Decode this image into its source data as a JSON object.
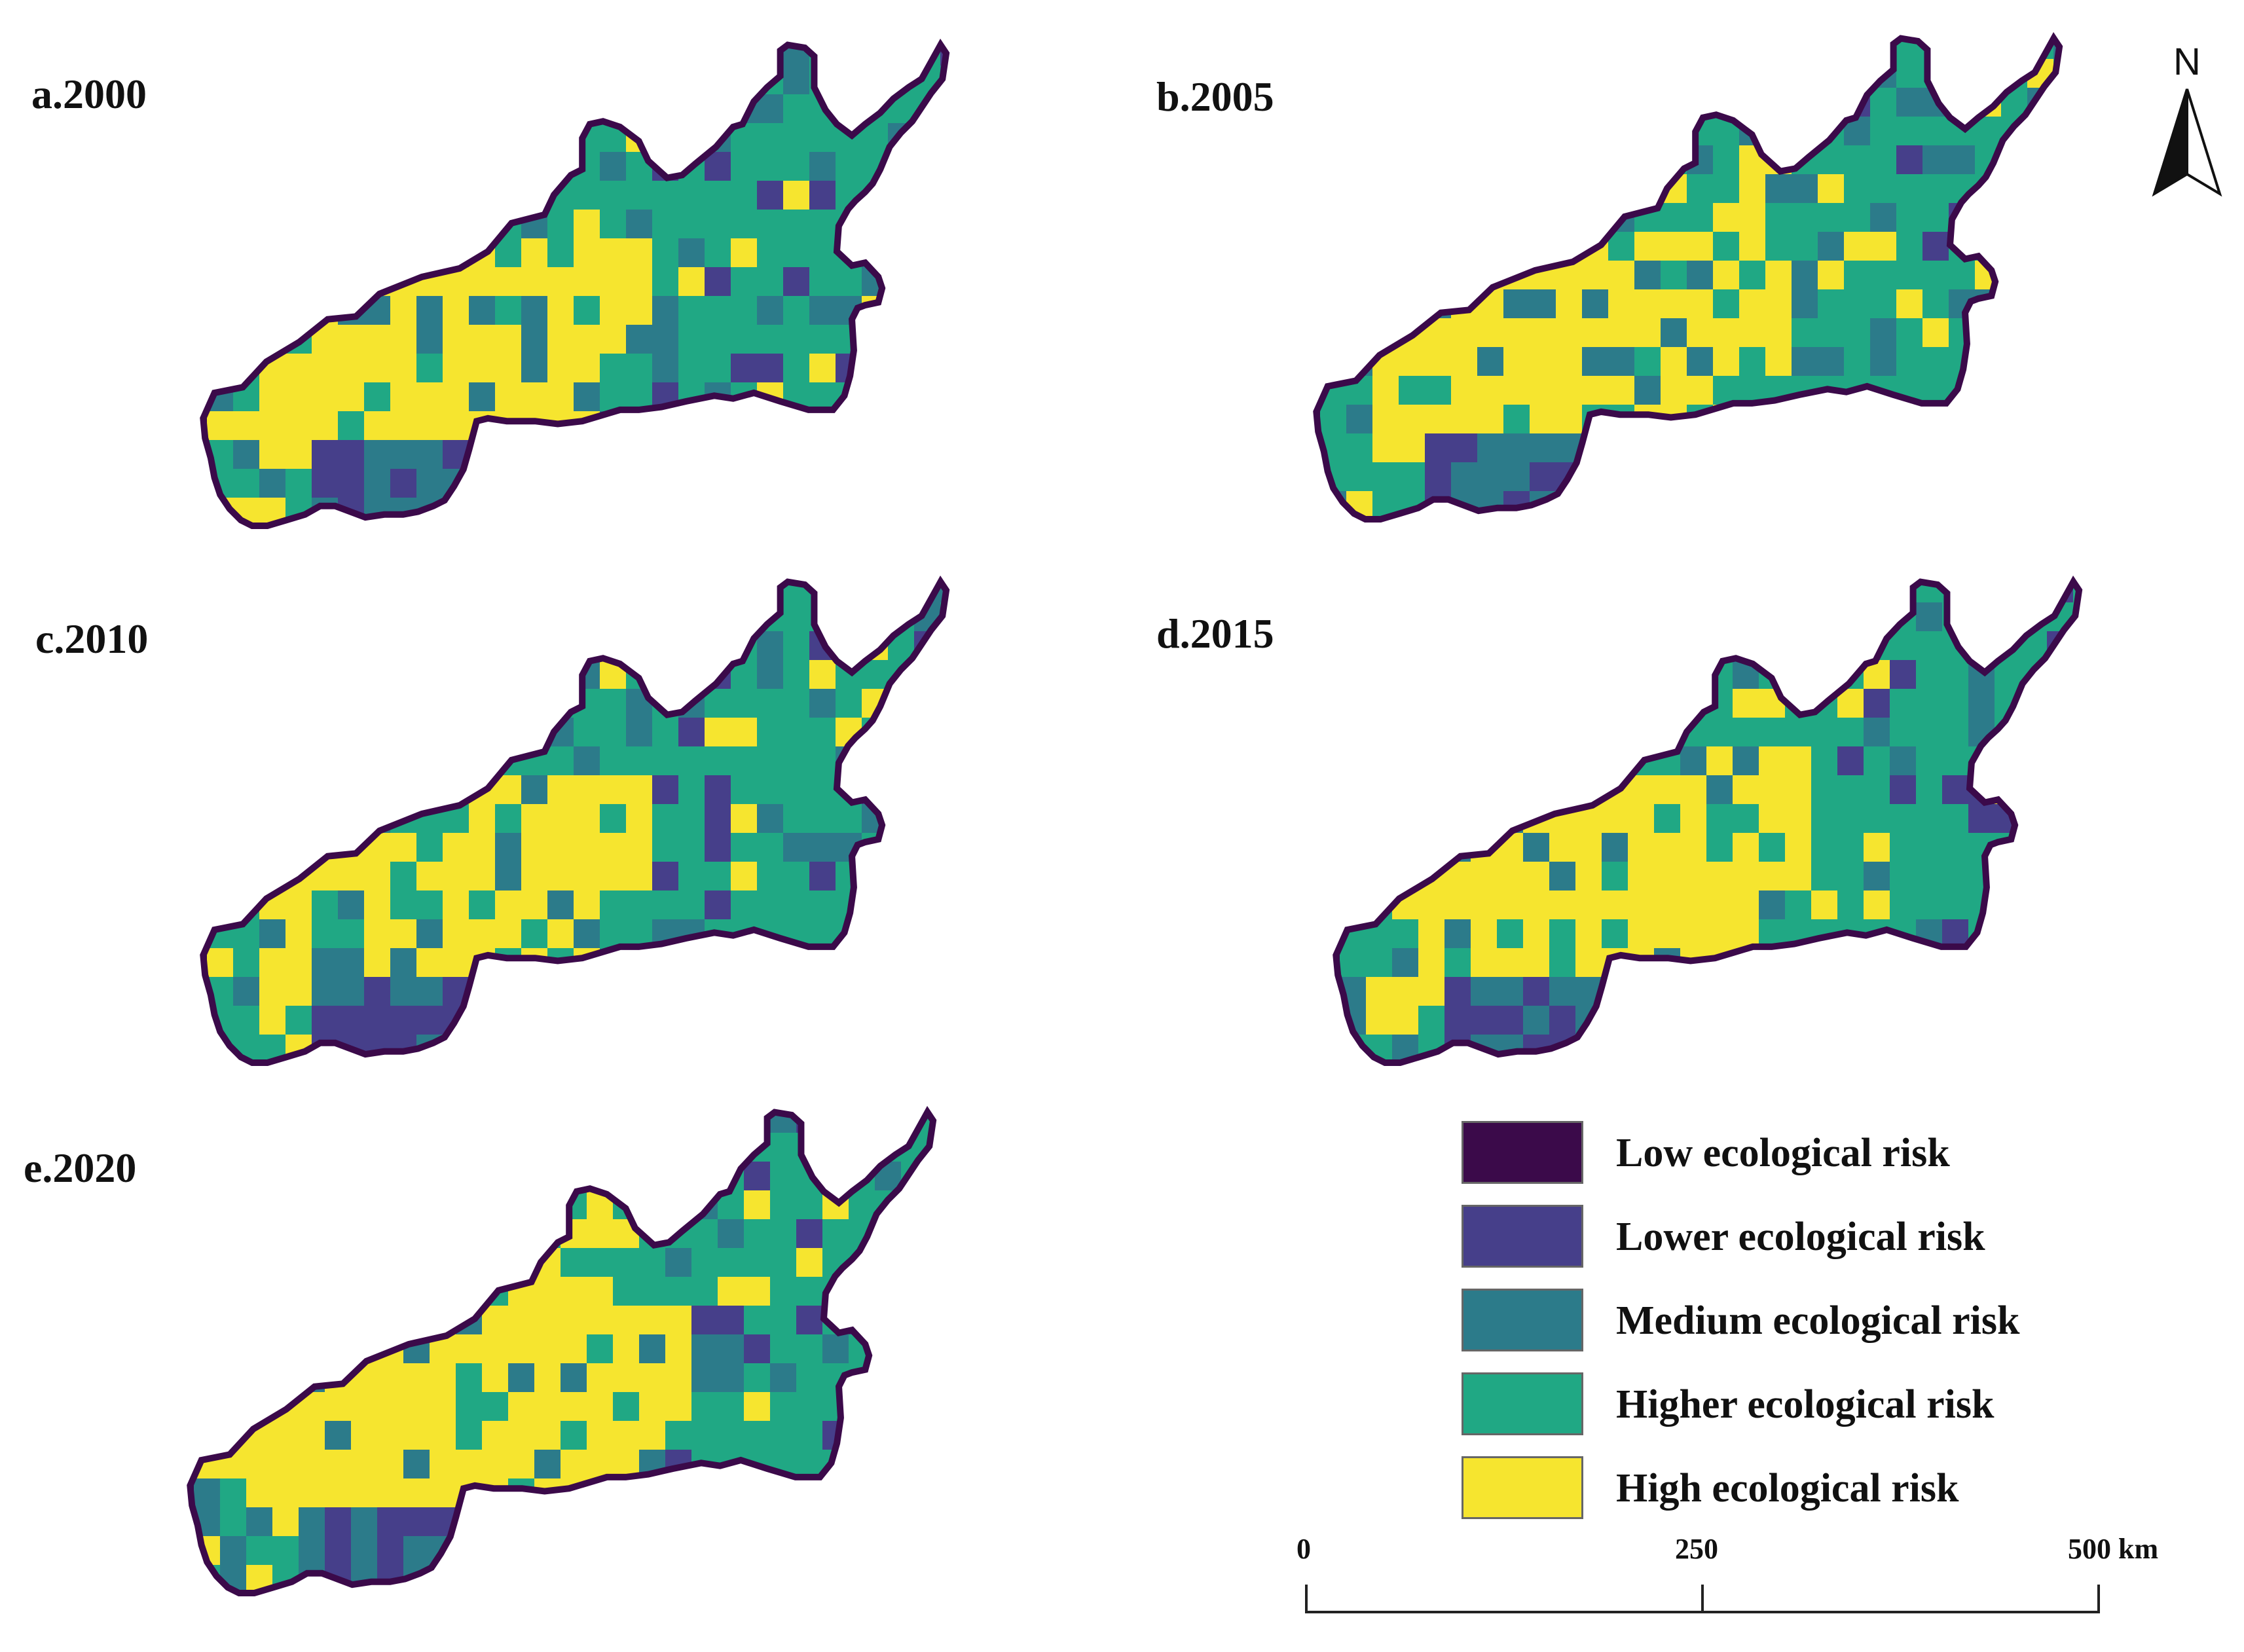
{
  "colors": {
    "low": "#3b0a4a",
    "lower": "#463f8a",
    "medium": "#2c7b8a",
    "higher": "#20a884",
    "high": "#f6e52f"
  },
  "panels": [
    {
      "label": "a.2000"
    },
    {
      "label": "b.2005"
    },
    {
      "label": "c.2010"
    },
    {
      "label": "d.2015"
    },
    {
      "label": "e.2020"
    }
  ],
  "legend": {
    "items": [
      {
        "key": "low",
        "label": "Low ecological risk"
      },
      {
        "key": "lower",
        "label": "Lower ecological risk"
      },
      {
        "key": "medium",
        "label": "Medium ecological risk"
      },
      {
        "key": "higher",
        "label": "Higher ecological risk"
      },
      {
        "key": "high",
        "label": "High ecological risk"
      }
    ]
  },
  "scale_bar": {
    "ticks": [
      "0",
      "250",
      "500 km"
    ]
  },
  "north_arrow": {
    "letter": "N",
    "icon": "north-arrow-icon"
  }
}
